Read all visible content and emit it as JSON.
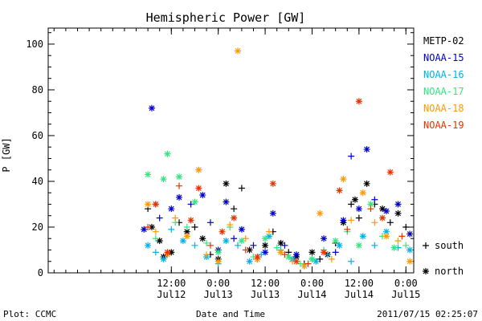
{
  "chart_data": {
    "type": "scatter",
    "title": "Hemispheric Power [GW]",
    "ylabel": "P [GW]",
    "xlabel": "Date and Time",
    "ylim": [
      0,
      107
    ],
    "xlim": [
      "2011-07-11T04:30",
      "2011-07-15T02:00"
    ],
    "x_ticks": [
      {
        "time": "2011-07-12T12:00",
        "line1": "12:00",
        "line2": "Jul12"
      },
      {
        "time": "2011-07-13T00:00",
        "line1": "0:00",
        "line2": "Jul13"
      },
      {
        "time": "2011-07-13T12:00",
        "line1": "12:00",
        "line2": "Jul13"
      },
      {
        "time": "2011-07-14T00:00",
        "line1": "0:00",
        "line2": "Jul14"
      },
      {
        "time": "2011-07-14T12:00",
        "line1": "12:00",
        "line2": "Jul14"
      },
      {
        "time": "2011-07-15T00:00",
        "line1": "0:00",
        "line2": "Jul15"
      }
    ],
    "y_ticks": [
      0,
      20,
      40,
      60,
      80,
      100
    ],
    "grid": false,
    "legend_position": "right",
    "series": [
      {
        "name": "METP-02",
        "color": "#000000",
        "points": [
          [
            "2011-07-12T06:00",
            28,
            "south"
          ],
          [
            "2011-07-12T07:00",
            20,
            "north"
          ],
          [
            "2011-07-12T08:00",
            30,
            "south"
          ],
          [
            "2011-07-12T09:00",
            14,
            "north"
          ],
          [
            "2011-07-12T10:00",
            7,
            "north"
          ],
          [
            "2011-07-12T11:00",
            8,
            "south"
          ],
          [
            "2011-07-12T12:00",
            9,
            "north"
          ],
          [
            "2011-07-12T14:00",
            22,
            "south"
          ],
          [
            "2011-07-12T16:00",
            18,
            "north"
          ],
          [
            "2011-07-12T18:00",
            20,
            "south"
          ],
          [
            "2011-07-12T20:00",
            15,
            "north"
          ],
          [
            "2011-07-12T22:00",
            8,
            "south"
          ],
          [
            "2011-07-13T00:00",
            6,
            "north"
          ],
          [
            "2011-07-13T02:00",
            39,
            "north"
          ],
          [
            "2011-07-13T04:00",
            28,
            "south"
          ],
          [
            "2011-07-13T06:00",
            37,
            "south"
          ],
          [
            "2011-07-13T08:00",
            10,
            "north"
          ],
          [
            "2011-07-13T10:00",
            6,
            "south"
          ],
          [
            "2011-07-13T12:00",
            12,
            "north"
          ],
          [
            "2011-07-13T14:00",
            18,
            "south"
          ],
          [
            "2011-07-13T16:00",
            13,
            "north"
          ],
          [
            "2011-07-13T18:00",
            9,
            "south"
          ],
          [
            "2011-07-13T20:00",
            7,
            "north"
          ],
          [
            "2011-07-13T22:00",
            4,
            "south"
          ],
          [
            "2011-07-14T00:00",
            9,
            "north"
          ],
          [
            "2011-07-14T02:00",
            6,
            "south"
          ],
          [
            "2011-07-14T04:00",
            8,
            "north"
          ],
          [
            "2011-07-14T06:00",
            13,
            "south"
          ],
          [
            "2011-07-14T08:00",
            22,
            "north"
          ],
          [
            "2011-07-14T10:00",
            30,
            "south"
          ],
          [
            "2011-07-14T11:00",
            32,
            "north"
          ],
          [
            "2011-07-14T12:00",
            24,
            "south"
          ],
          [
            "2011-07-14T14:00",
            39,
            "north"
          ],
          [
            "2011-07-14T16:00",
            30,
            "south"
          ],
          [
            "2011-07-14T18:00",
            28,
            "north"
          ],
          [
            "2011-07-14T20:00",
            22,
            "south"
          ],
          [
            "2011-07-14T22:00",
            26,
            "north"
          ],
          [
            "2011-07-15T00:00",
            20,
            "south"
          ]
        ]
      },
      {
        "name": "NOAA-15",
        "color": "#0000cc",
        "points": [
          [
            "2011-07-12T05:00",
            19,
            "north"
          ],
          [
            "2011-07-12T07:00",
            72,
            "north"
          ],
          [
            "2011-07-12T09:00",
            24,
            "south"
          ],
          [
            "2011-07-12T12:00",
            28,
            "north"
          ],
          [
            "2011-07-12T14:00",
            33,
            "north"
          ],
          [
            "2011-07-12T17:00",
            30,
            "south"
          ],
          [
            "2011-07-12T20:00",
            34,
            "north"
          ],
          [
            "2011-07-12T22:00",
            22,
            "south"
          ],
          [
            "2011-07-13T00:00",
            10,
            "north"
          ],
          [
            "2011-07-13T02:00",
            31,
            "north"
          ],
          [
            "2011-07-13T04:00",
            15,
            "south"
          ],
          [
            "2011-07-13T06:00",
            19,
            "north"
          ],
          [
            "2011-07-13T09:00",
            12,
            "south"
          ],
          [
            "2011-07-13T12:00",
            9,
            "north"
          ],
          [
            "2011-07-13T14:00",
            26,
            "north"
          ],
          [
            "2011-07-13T17:00",
            12,
            "south"
          ],
          [
            "2011-07-13T20:00",
            8,
            "north"
          ],
          [
            "2011-07-14T00:00",
            6,
            "south"
          ],
          [
            "2011-07-14T03:00",
            15,
            "north"
          ],
          [
            "2011-07-14T06:00",
            9,
            "south"
          ],
          [
            "2011-07-14T08:00",
            23,
            "north"
          ],
          [
            "2011-07-14T10:00",
            51,
            "south"
          ],
          [
            "2011-07-14T12:00",
            28,
            "north"
          ],
          [
            "2011-07-14T14:00",
            54,
            "north"
          ],
          [
            "2011-07-14T16:00",
            32,
            "south"
          ],
          [
            "2011-07-14T19:00",
            27,
            "north"
          ],
          [
            "2011-07-14T22:00",
            30,
            "north"
          ],
          [
            "2011-07-15T01:00",
            17,
            "north"
          ]
        ]
      },
      {
        "name": "NOAA-16",
        "color": "#00b4e6",
        "points": [
          [
            "2011-07-12T06:00",
            12,
            "north"
          ],
          [
            "2011-07-12T08:00",
            9,
            "south"
          ],
          [
            "2011-07-12T10:00",
            6,
            "north"
          ],
          [
            "2011-07-12T12:00",
            19,
            "south"
          ],
          [
            "2011-07-12T15:00",
            14,
            "north"
          ],
          [
            "2011-07-12T18:00",
            12,
            "south"
          ],
          [
            "2011-07-12T21:00",
            7,
            "north"
          ],
          [
            "2011-07-13T00:00",
            4,
            "south"
          ],
          [
            "2011-07-13T02:00",
            14,
            "north"
          ],
          [
            "2011-07-13T05:00",
            12,
            "south"
          ],
          [
            "2011-07-13T08:00",
            5,
            "north"
          ],
          [
            "2011-07-13T11:00",
            8,
            "south"
          ],
          [
            "2011-07-13T13:00",
            16,
            "north"
          ],
          [
            "2011-07-13T16:00",
            10,
            "south"
          ],
          [
            "2011-07-13T19:00",
            6,
            "north"
          ],
          [
            "2011-07-13T22:00",
            3,
            "south"
          ],
          [
            "2011-07-14T01:00",
            5,
            "north"
          ],
          [
            "2011-07-14T04:00",
            8,
            "south"
          ],
          [
            "2011-07-14T07:00",
            12,
            "north"
          ],
          [
            "2011-07-14T10:00",
            5,
            "south"
          ],
          [
            "2011-07-14T13:00",
            16,
            "north"
          ],
          [
            "2011-07-14T16:00",
            12,
            "south"
          ],
          [
            "2011-07-14T19:00",
            18,
            "north"
          ],
          [
            "2011-07-14T22:00",
            11,
            "south"
          ],
          [
            "2011-07-15T01:00",
            10,
            "north"
          ]
        ]
      },
      {
        "name": "NOAA-17",
        "color": "#33e680",
        "points": [
          [
            "2011-07-12T06:00",
            43,
            "north"
          ],
          [
            "2011-07-12T08:00",
            15,
            "south"
          ],
          [
            "2011-07-12T10:00",
            41,
            "north"
          ],
          [
            "2011-07-12T11:00",
            52,
            "north"
          ],
          [
            "2011-07-12T13:00",
            22,
            "south"
          ],
          [
            "2011-07-12T14:00",
            42,
            "north"
          ],
          [
            "2011-07-12T16:00",
            20,
            "south"
          ],
          [
            "2011-07-12T18:00",
            31,
            "north"
          ],
          [
            "2011-07-12T21:00",
            13,
            "south"
          ],
          [
            "2011-07-13T00:00",
            9,
            "north"
          ],
          [
            "2011-07-13T03:00",
            20,
            "south"
          ],
          [
            "2011-07-13T06:00",
            14,
            "north"
          ],
          [
            "2011-07-13T09:00",
            7,
            "south"
          ],
          [
            "2011-07-13T12:00",
            15,
            "north"
          ],
          [
            "2011-07-13T15:00",
            11,
            "south"
          ],
          [
            "2011-07-13T18:00",
            7,
            "north"
          ],
          [
            "2011-07-13T21:00",
            4,
            "south"
          ],
          [
            "2011-07-14T00:00",
            6,
            "north"
          ],
          [
            "2011-07-14T03:00",
            10,
            "south"
          ],
          [
            "2011-07-14T06:00",
            14,
            "north"
          ],
          [
            "2011-07-14T09:00",
            18,
            "south"
          ],
          [
            "2011-07-14T12:00",
            12,
            "north"
          ],
          [
            "2011-07-14T15:00",
            30,
            "north"
          ],
          [
            "2011-07-14T18:00",
            16,
            "south"
          ],
          [
            "2011-07-14T21:00",
            11,
            "north"
          ],
          [
            "2011-07-15T00:00",
            12,
            "south"
          ]
        ]
      },
      {
        "name": "NOAA-18",
        "color": "#ff9900",
        "points": [
          [
            "2011-07-12T06:00",
            30,
            "north"
          ],
          [
            "2011-07-12T08:00",
            18,
            "south"
          ],
          [
            "2011-07-12T11:00",
            8,
            "north"
          ],
          [
            "2011-07-12T13:00",
            24,
            "south"
          ],
          [
            "2011-07-12T16:00",
            16,
            "north"
          ],
          [
            "2011-07-12T19:00",
            45,
            "north"
          ],
          [
            "2011-07-12T21:00",
            8,
            "south"
          ],
          [
            "2011-07-13T00:00",
            5,
            "north"
          ],
          [
            "2011-07-13T03:00",
            21,
            "south"
          ],
          [
            "2011-07-13T05:00",
            97,
            "north"
          ],
          [
            "2011-07-13T07:00",
            15,
            "south"
          ],
          [
            "2011-07-13T10:00",
            6,
            "north"
          ],
          [
            "2011-07-13T13:00",
            18,
            "south"
          ],
          [
            "2011-07-13T16:00",
            9,
            "north"
          ],
          [
            "2011-07-13T19:00",
            5,
            "south"
          ],
          [
            "2011-07-13T22:00",
            3,
            "north"
          ],
          [
            "2011-07-14T02:00",
            26,
            "north"
          ],
          [
            "2011-07-14T05:00",
            6,
            "south"
          ],
          [
            "2011-07-14T08:00",
            41,
            "north"
          ],
          [
            "2011-07-14T10:00",
            23,
            "south"
          ],
          [
            "2011-07-14T13:00",
            35,
            "north"
          ],
          [
            "2011-07-14T16:00",
            22,
            "south"
          ],
          [
            "2011-07-14T19:00",
            16,
            "north"
          ],
          [
            "2011-07-14T22:00",
            14,
            "south"
          ],
          [
            "2011-07-15T01:00",
            5,
            "north"
          ]
        ]
      },
      {
        "name": "NOAA-19",
        "color": "#e63300",
        "points": [
          [
            "2011-07-12T06:00",
            20,
            "south"
          ],
          [
            "2011-07-12T08:00",
            30,
            "north"
          ],
          [
            "2011-07-12T11:00",
            9,
            "north"
          ],
          [
            "2011-07-12T14:00",
            38,
            "south"
          ],
          [
            "2011-07-12T17:00",
            23,
            "north"
          ],
          [
            "2011-07-12T19:00",
            37,
            "north"
          ],
          [
            "2011-07-12T22:00",
            12,
            "south"
          ],
          [
            "2011-07-13T01:00",
            18,
            "north"
          ],
          [
            "2011-07-13T04:00",
            24,
            "north"
          ],
          [
            "2011-07-13T07:00",
            10,
            "south"
          ],
          [
            "2011-07-13T10:00",
            7,
            "north"
          ],
          [
            "2011-07-13T14:00",
            39,
            "north"
          ],
          [
            "2011-07-13T17:00",
            8,
            "south"
          ],
          [
            "2011-07-13T20:00",
            5,
            "north"
          ],
          [
            "2011-07-13T23:00",
            4,
            "south"
          ],
          [
            "2011-07-14T03:00",
            9,
            "north"
          ],
          [
            "2011-07-14T07:00",
            36,
            "north"
          ],
          [
            "2011-07-14T09:00",
            19,
            "south"
          ],
          [
            "2011-07-14T12:00",
            75,
            "north"
          ],
          [
            "2011-07-14T15:00",
            28,
            "south"
          ],
          [
            "2011-07-14T18:00",
            24,
            "north"
          ],
          [
            "2011-07-14T20:00",
            44,
            "north"
          ],
          [
            "2011-07-14T23:00",
            16,
            "south"
          ]
        ]
      }
    ]
  },
  "legend_markers": [
    {
      "symbol": "+",
      "label": "south"
    },
    {
      "symbol": "*",
      "label": "north"
    }
  ],
  "footer": {
    "left": "Plot: CCMC",
    "center": "Date and Time",
    "right": "2011/07/15 02:25:07"
  }
}
